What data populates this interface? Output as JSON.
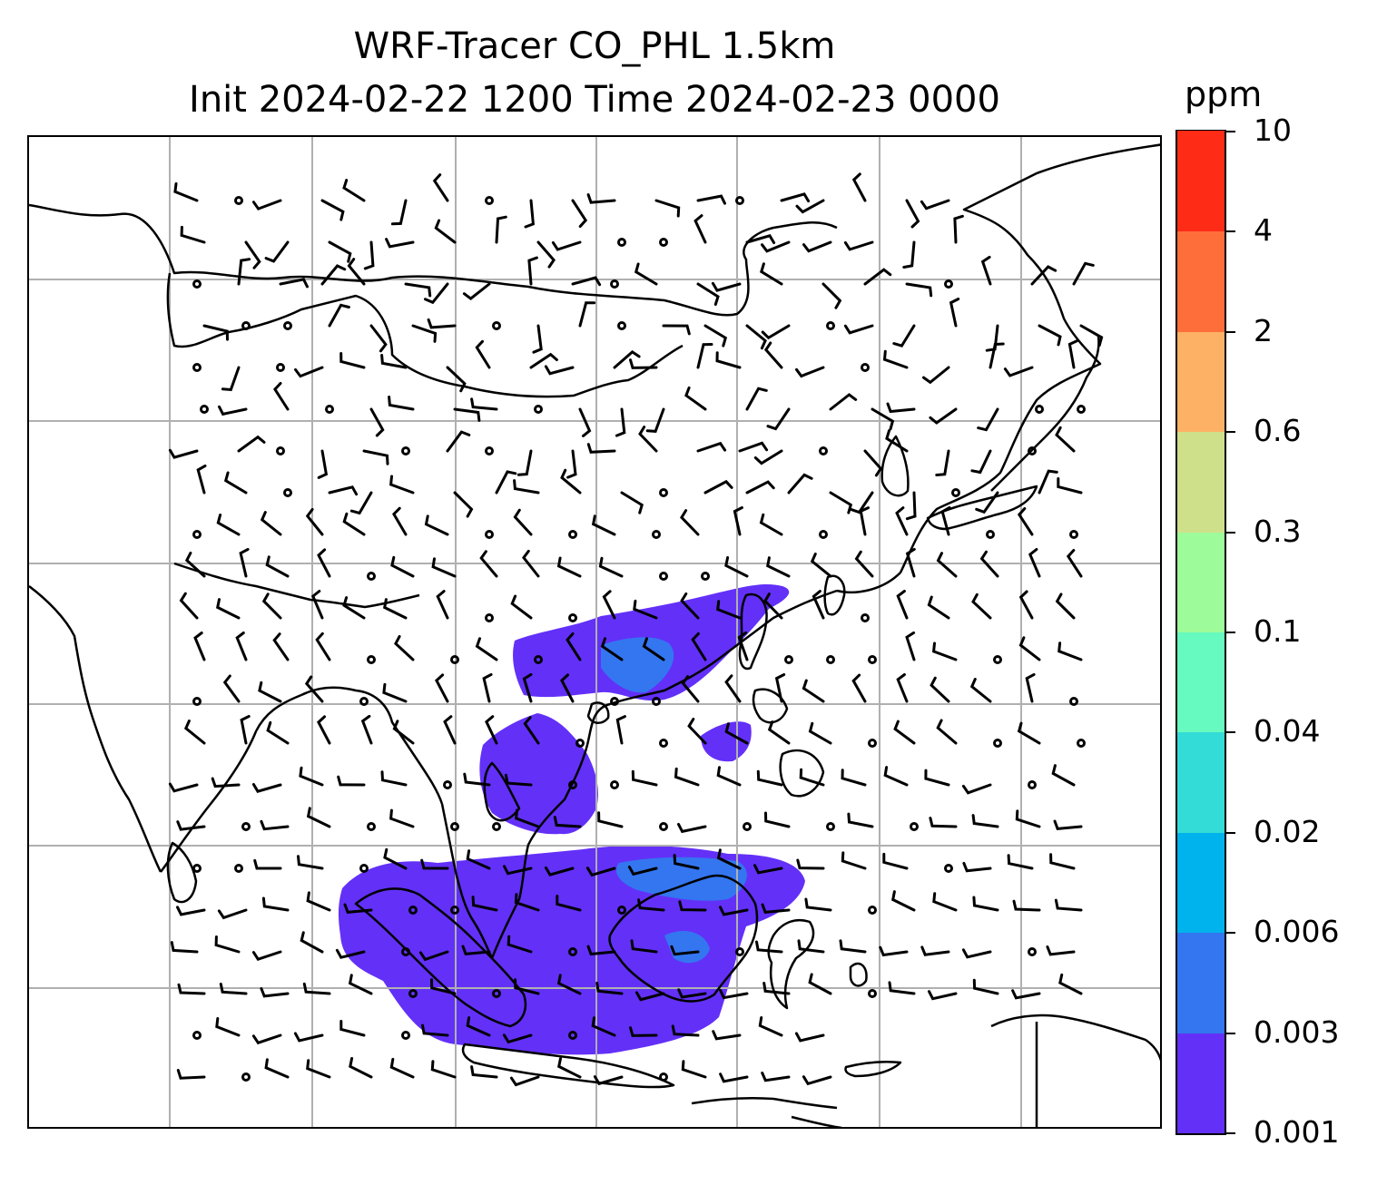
{
  "title": {
    "line1": "WRF-Tracer CO_PHL 1.5km",
    "line2": "Init 2024-02-22 1200 Time 2024-02-23 0000"
  },
  "colorbar": {
    "unit": "ppm",
    "levels": [
      "0.001",
      "0.003",
      "0.006",
      "0.02",
      "0.04",
      "0.1",
      "0.3",
      "0.6",
      "2",
      "4",
      "10"
    ],
    "colors": [
      "#6330f8",
      "#3376f0",
      "#00b3ec",
      "#33dcd6",
      "#66fac0",
      "#9dfb9a",
      "#cfe08a",
      "#fdb165",
      "#fe6e3b",
      "#fe2b17"
    ]
  },
  "map": {
    "gridlines": true,
    "plume_color": "#6330f8",
    "plume_core_color": "#3376f0",
    "coastline_color": "#000000",
    "grid_color": "#b0b0b0",
    "symbol": "wind-barbs"
  }
}
